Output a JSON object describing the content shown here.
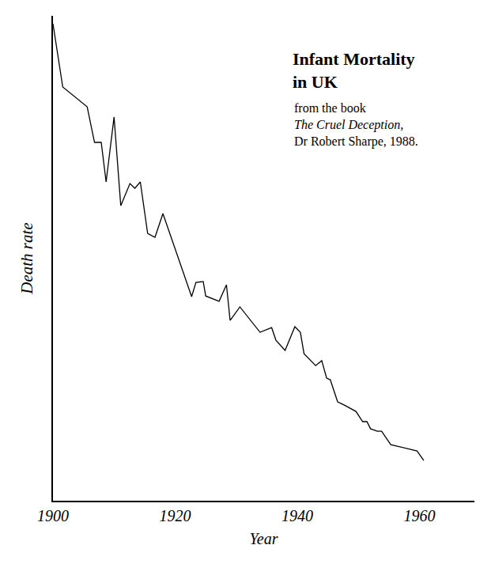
{
  "chart_data": {
    "type": "line",
    "title": "Infant Mortality in UK",
    "subtitle": [
      "from the book",
      "The Cruel Deception,",
      "Dr Robert Sharpe, 1988."
    ],
    "x_label": "Year",
    "y_label": "Death rate",
    "x": [
      1900,
      1901.6,
      1905.6,
      1906.8,
      1907.9,
      1908.7,
      1910.0,
      1911.1,
      1912.6,
      1913.4,
      1914.3,
      1915.5,
      1916.7,
      1918.0,
      1922.7,
      1923.4,
      1924.6,
      1925.0,
      1927.2,
      1928.4,
      1929.0,
      1930.6,
      1933.9,
      1935.8,
      1936.5,
      1938.0,
      1939.6,
      1940.5,
      1941.1,
      1943.0,
      1944.0,
      1944.8,
      1945.4,
      1946.6,
      1947.7,
      1949.6,
      1950.7,
      1951.4,
      1952.0,
      1953.1,
      1953.8,
      1955.3,
      1959.6,
      1960.7
    ],
    "values": [
      154.0,
      134.8,
      128.8,
      118.0,
      118.0,
      106.0,
      125.7,
      98.8,
      105.5,
      104.1,
      106.0,
      90.4,
      89.2,
      96.4,
      71.2,
      75.5,
      75.8,
      71.4,
      69.8,
      74.8,
      64.0,
      68.1,
      60.4,
      61.8,
      58.0,
      54.9,
      62.1,
      60.4,
      53.9,
      50.3,
      51.8,
      46.5,
      46.0,
      39.3,
      38.3,
      36.4,
      33.3,
      33.3,
      31.1,
      30.4,
      30.4,
      26.3,
      24.4,
      21.5
    ],
    "color": "#000000",
    "xlim": [
      1900,
      1969
    ],
    "xticks": [
      1900,
      1920,
      1940,
      1960
    ],
    "ylim": [
      9.3,
      156.4
    ],
    "tick_labels": "x",
    "grid": false
  }
}
